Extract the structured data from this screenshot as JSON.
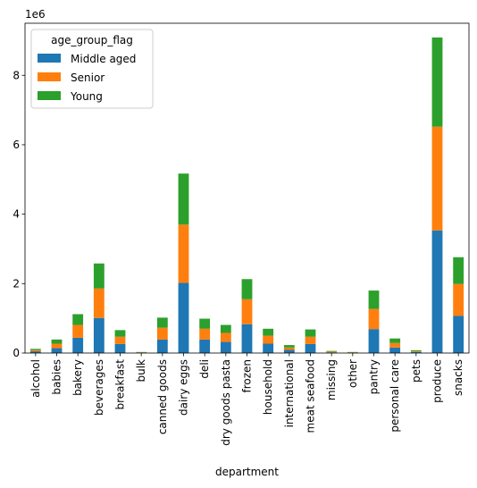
{
  "chart_data": {
    "type": "bar",
    "stacked": true,
    "xlabel": "department",
    "ylabel": "",
    "y_scale_label": "1e6",
    "ylim": [
      0,
      9.5
    ],
    "yticks": [
      0,
      2,
      4,
      6,
      8
    ],
    "legend": {
      "title": "age_group_flag",
      "placement": "top-left"
    },
    "categories": [
      "alcohol",
      "babies",
      "bakery",
      "beverages",
      "breakfast",
      "bulk",
      "canned goods",
      "dairy eggs",
      "deli",
      "dry goods pasta",
      "frozen",
      "household",
      "international",
      "meat seafood",
      "missing",
      "other",
      "pantry",
      "personal care",
      "pets",
      "produce",
      "snacks"
    ],
    "series": [
      {
        "name": "Middle aged",
        "color": "#1f77b4",
        "values": [
          0.05,
          0.14,
          0.44,
          1.01,
          0.26,
          0.01,
          0.39,
          2.02,
          0.39,
          0.32,
          0.83,
          0.27,
          0.09,
          0.26,
          0.02,
          0.01,
          0.69,
          0.16,
          0.03,
          3.53,
          1.07
        ]
      },
      {
        "name": "Senior",
        "color": "#ff7f0e",
        "values": [
          0.04,
          0.13,
          0.37,
          0.85,
          0.21,
          0.01,
          0.34,
          1.68,
          0.31,
          0.26,
          0.72,
          0.23,
          0.07,
          0.21,
          0.02,
          0.01,
          0.58,
          0.13,
          0.02,
          2.99,
          0.92
        ]
      },
      {
        "name": "Young",
        "color": "#2ca02c",
        "values": [
          0.03,
          0.12,
          0.31,
          0.72,
          0.19,
          0.01,
          0.29,
          1.47,
          0.29,
          0.23,
          0.58,
          0.2,
          0.07,
          0.21,
          0.02,
          0.01,
          0.53,
          0.13,
          0.03,
          2.57,
          0.77
        ]
      }
    ]
  }
}
